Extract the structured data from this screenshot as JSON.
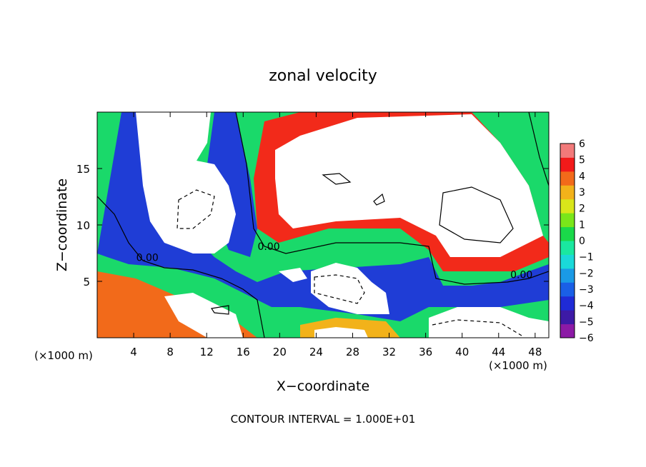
{
  "chart_data": {
    "type": "heatmap",
    "title": "zonal velocity",
    "xlabel": "X−coordinate",
    "ylabel": "Z−coordinate",
    "x_unit_left": "(×1000 m)",
    "x_unit_right": "(×1000 m)",
    "xlim": [
      0,
      49.5
    ],
    "ylim": [
      0,
      20
    ],
    "x_ticks": [
      4,
      8,
      12,
      16,
      20,
      24,
      28,
      32,
      36,
      40,
      44,
      48
    ],
    "y_ticks": [
      5,
      10,
      15
    ],
    "x_tick_labels": [
      "4",
      "8",
      "12",
      "16",
      "20",
      "24",
      "28",
      "32",
      "36",
      "40",
      "44",
      "48"
    ],
    "y_tick_labels": [
      "5",
      "10",
      "15"
    ],
    "colorbar": {
      "range": [
        -6,
        6
      ],
      "tick_labels": [
        "6",
        "5",
        "4",
        "3",
        "2",
        "1",
        "0",
        "−1",
        "−2",
        "−3",
        "−4",
        "−5",
        "−6"
      ],
      "colors": [
        "#8c1aa6",
        "#3d1aa6",
        "#1f2bd6",
        "#1a5fe6",
        "#1a9ae6",
        "#1ad9d9",
        "#1ae8a0",
        "#1ad94a",
        "#7ae61a",
        "#d9e61a",
        "#f2b21a",
        "#f26a1a",
        "#f21a1a",
        "#f27a7a"
      ],
      "out_of_range_color": "#ffffff"
    },
    "contour_labels": [
      {
        "text": "0.00",
        "x": 5.5,
        "y": 6.8
      },
      {
        "text": "0.00",
        "x": 18.8,
        "y": 7.8
      },
      {
        "text": "0.00",
        "x": 46.5,
        "y": 5.3
      }
    ],
    "footer": "CONTOUR INTERVAL = 1.000E+01"
  }
}
